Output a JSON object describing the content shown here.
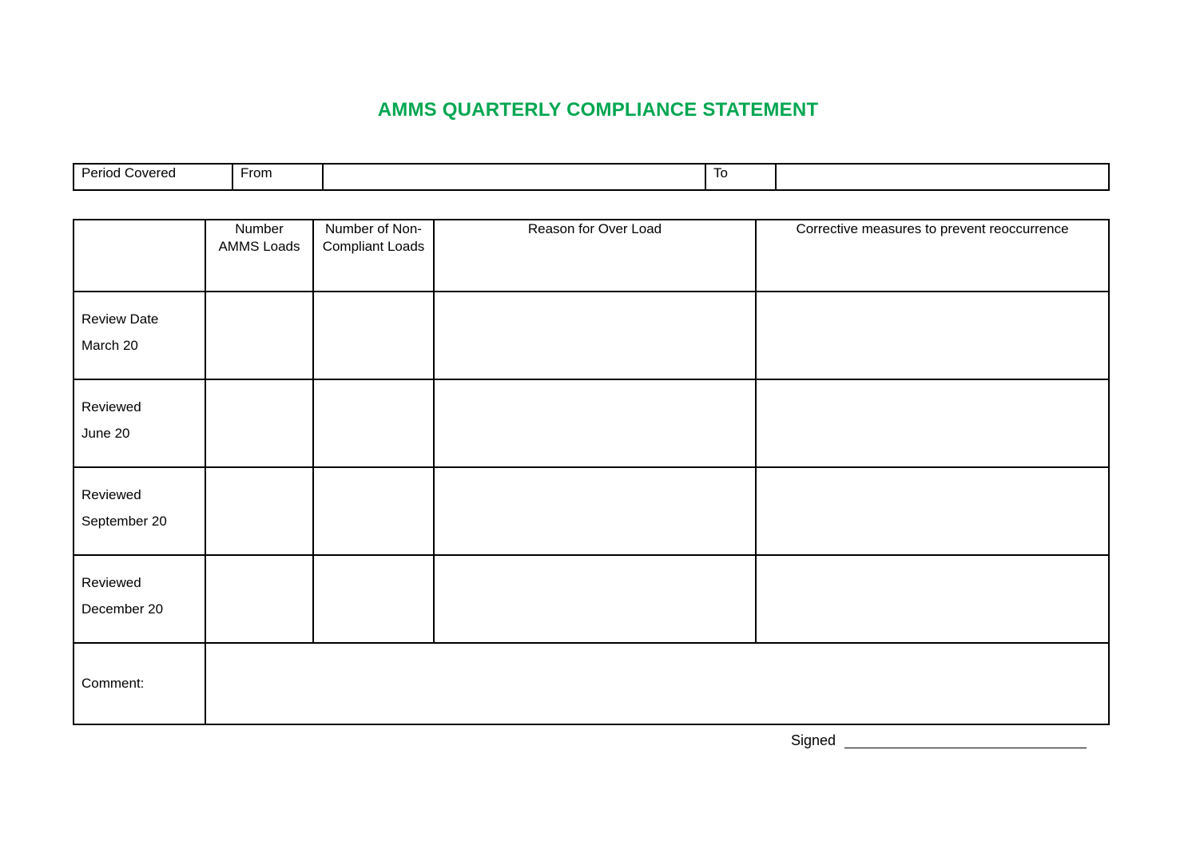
{
  "title": "AMMS QUARTERLY COMPLIANCE STATEMENT",
  "title_color": "#00a650",
  "period": {
    "label": "Period Covered",
    "from_label": "From",
    "from_value": "",
    "to_label": "To",
    "to_value": ""
  },
  "table": {
    "headers": [
      "",
      "Number AMMS Loads",
      "Number of Non-Compliant Loads",
      "Reason for Over Load",
      "Corrective measures to prevent reoccurrence"
    ],
    "rows": [
      {
        "line1": "Review Date",
        "line2": "March 20"
      },
      {
        "line1": "Reviewed",
        "line2": "June 20"
      },
      {
        "line1": "Reviewed",
        "line2": "September 20"
      },
      {
        "line1": "Reviewed",
        "line2": "December 20"
      }
    ],
    "comment_label": "Comment:"
  },
  "signed_label": "Signed"
}
